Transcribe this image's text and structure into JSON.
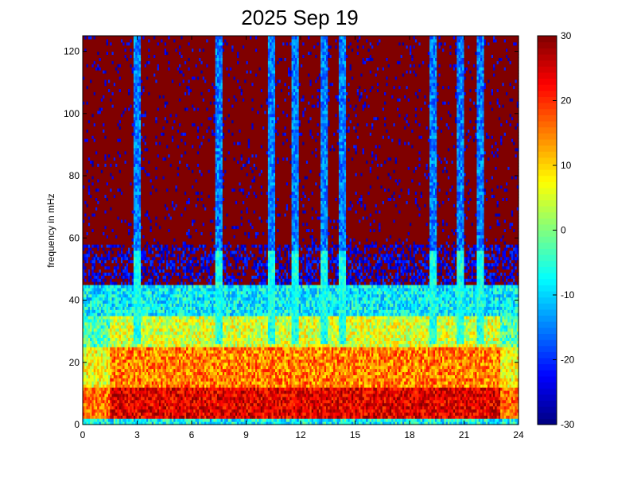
{
  "chart_data": {
    "type": "heatmap",
    "title": "2025 Sep 19",
    "xlabel": "",
    "ylabel": "frequency in mHz",
    "xlim": [
      0,
      24
    ],
    "ylim": [
      0,
      125
    ],
    "x_ticks": [
      0,
      3,
      6,
      9,
      12,
      15,
      18,
      21,
      24
    ],
    "y_ticks": [
      0,
      20,
      40,
      60,
      80,
      100,
      120
    ],
    "colorbar": {
      "colormap": "jet",
      "clim": [
        -30,
        30
      ],
      "ticks": [
        -30,
        -20,
        -10,
        0,
        10,
        20,
        30
      ]
    },
    "structure": {
      "hour_step": 0.1,
      "freq_step": 1.0,
      "baseline_low_freq": {
        "band": [
          0,
          12
        ],
        "typical_value": 22
      },
      "noise_floor_high_freq": {
        "above_mHz": 55,
        "typical_value": 30
      },
      "transition_band": {
        "band": [
          35,
          55
        ],
        "typical_value": -22
      },
      "vertical_streaks_hours": [
        3.0,
        7.4,
        10.3,
        11.6,
        13.2,
        14.2,
        19.3,
        20.8,
        21.9
      ],
      "high_activity_window_hours": [
        4,
        23
      ]
    }
  }
}
